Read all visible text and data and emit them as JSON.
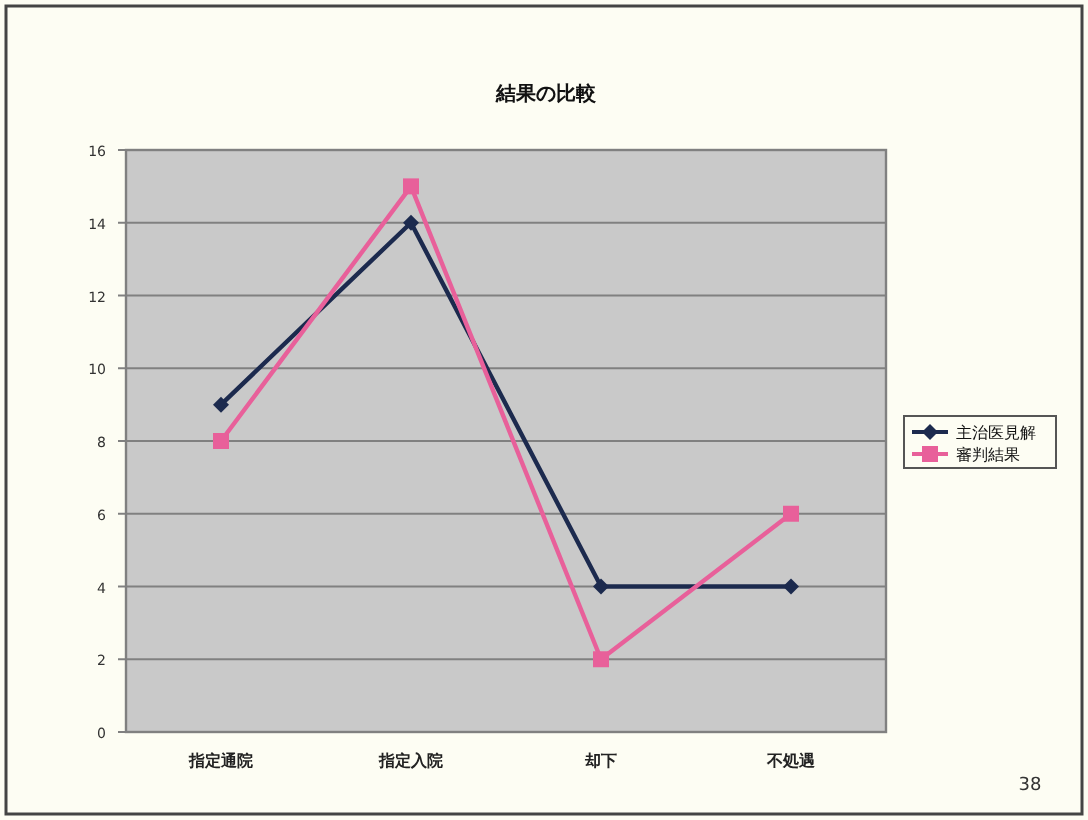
{
  "chart_data": {
    "type": "line",
    "title": "結果の比較",
    "categories": [
      "指定通院",
      "指定入院",
      "却下",
      "不処遇"
    ],
    "series": [
      {
        "name": "主治医見解",
        "color": "#1c2a4e",
        "marker": "diamond",
        "values": [
          9,
          14,
          4,
          4
        ]
      },
      {
        "name": "審判結果",
        "color": "#e8609a",
        "marker": "square",
        "values": [
          8,
          15,
          2,
          6
        ]
      }
    ],
    "ylim": [
      0,
      16
    ],
    "yticks": [
      0,
      2,
      4,
      6,
      8,
      10,
      12,
      14,
      16
    ],
    "grid": "y",
    "legend": "right",
    "annotations": [
      "38"
    ]
  }
}
